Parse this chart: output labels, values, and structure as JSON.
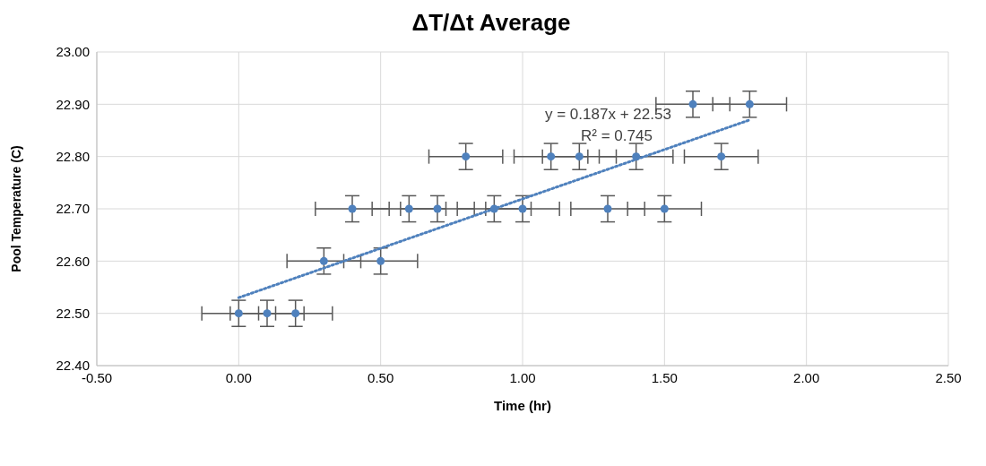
{
  "chart_data": {
    "type": "scatter",
    "title": "ΔT/Δt Average",
    "xlabel": "Time (hr)",
    "ylabel": "Pool Temperature (C)",
    "xlim": [
      -0.5,
      2.5
    ],
    "xticks": [
      {
        "value": -0.5,
        "label": "-0.50"
      },
      {
        "value": 0,
        "label": "0.00"
      },
      {
        "value": 0.5,
        "label": "0.50"
      },
      {
        "value": 1,
        "label": "1.00"
      },
      {
        "value": 1.5,
        "label": "1.50"
      },
      {
        "value": 2,
        "label": "2.00"
      },
      {
        "value": 2.5,
        "label": "2.50"
      }
    ],
    "ylim": [
      22.4,
      23.0
    ],
    "yticks": [
      {
        "value": 22.4,
        "label": "22.40"
      },
      {
        "value": 22.5,
        "label": "22.50"
      },
      {
        "value": 22.6,
        "label": "22.60"
      },
      {
        "value": 22.7,
        "label": "22.70"
      },
      {
        "value": 22.8,
        "label": "22.80"
      },
      {
        "value": 22.9,
        "label": "22.90"
      },
      {
        "value": 23.0,
        "label": "23.00"
      }
    ],
    "grid": true,
    "marker": "circle",
    "series": [
      {
        "type": "scatter",
        "color": "#4f81bd",
        "x": [
          0,
          0.1,
          0.2,
          0.3,
          0.4,
          0.5,
          0.6,
          0.7,
          0.8,
          0.9,
          1.0,
          1.1,
          1.2,
          1.3,
          1.4,
          1.5,
          1.6,
          1.7,
          1.8
        ],
        "values": [
          22.5,
          22.5,
          22.5,
          22.6,
          22.7,
          22.6,
          22.7,
          22.7,
          22.8,
          22.7,
          22.7,
          22.8,
          22.8,
          22.7,
          22.8,
          22.7,
          22.9,
          22.8,
          22.9
        ],
        "errors": [
          0.025,
          0.025,
          0.025,
          0.025,
          0.025,
          0.025,
          0.025,
          0.025,
          0.025,
          0.025,
          0.025,
          0.025,
          0.025,
          0.025,
          0.025,
          0.025,
          0.025,
          0.025,
          0.025
        ],
        "xerrors": [
          0.13,
          0.13,
          0.13,
          0.13,
          0.13,
          0.13,
          0.13,
          0.13,
          0.13,
          0.13,
          0.13,
          0.13,
          0.13,
          0.13,
          0.13,
          0.13,
          0.13,
          0.13,
          0.13
        ]
      },
      {
        "type": "line",
        "color": "#4f81bd",
        "line_style": "dotted",
        "marker": "none",
        "x": [
          0,
          1.8
        ],
        "values": [
          22.53,
          22.87
        ]
      }
    ],
    "annotations": [
      "y = 0.187x + 22.53",
      "R² = 0.745"
    ]
  }
}
